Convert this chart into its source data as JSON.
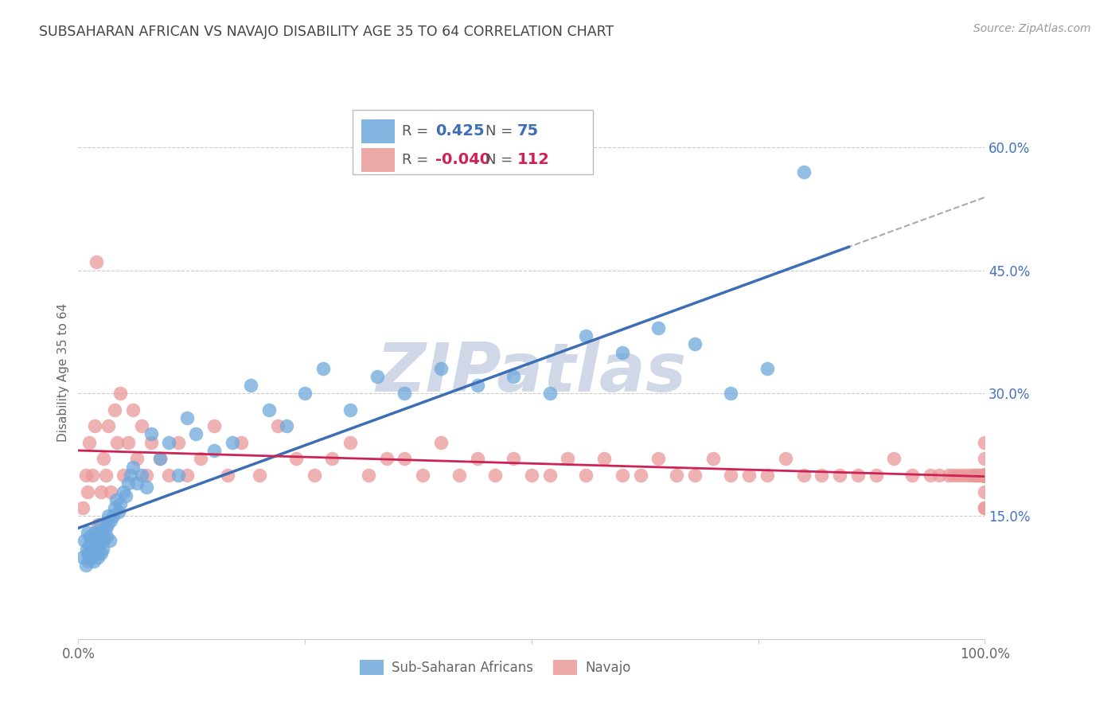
{
  "title": "SUBSAHARAN AFRICAN VS NAVAJO DISABILITY AGE 35 TO 64 CORRELATION CHART",
  "source": "Source: ZipAtlas.com",
  "ylabel": "Disability Age 35 to 64",
  "xlim": [
    0,
    1.0
  ],
  "ylim": [
    0,
    0.65
  ],
  "xticks": [
    0.0,
    0.25,
    0.5,
    0.75,
    1.0
  ],
  "xticklabels": [
    "0.0%",
    "",
    "",
    "",
    "100.0%"
  ],
  "ytick_positions": [
    0.15,
    0.3,
    0.45,
    0.6
  ],
  "yticklabels": [
    "15.0%",
    "30.0%",
    "45.0%",
    "60.0%"
  ],
  "blue_color": "#6fa8dc",
  "pink_color": "#ea9999",
  "blue_line_color": "#3d6eb5",
  "pink_line_color": "#cc2255",
  "dashed_line_color": "#aaaaaa",
  "blue_r": 0.425,
  "blue_n": 75,
  "pink_r": -0.04,
  "pink_n": 112,
  "blue_r_label": "0.425",
  "blue_n_label": "75",
  "pink_r_label": "-0.040",
  "pink_n_label": "112",
  "blue_scatter_x": [
    0.005,
    0.007,
    0.008,
    0.009,
    0.01,
    0.01,
    0.011,
    0.012,
    0.013,
    0.014,
    0.015,
    0.015,
    0.016,
    0.017,
    0.018,
    0.018,
    0.019,
    0.02,
    0.02,
    0.021,
    0.022,
    0.022,
    0.023,
    0.024,
    0.025,
    0.025,
    0.026,
    0.027,
    0.028,
    0.03,
    0.031,
    0.032,
    0.033,
    0.035,
    0.036,
    0.038,
    0.04,
    0.042,
    0.044,
    0.046,
    0.05,
    0.052,
    0.055,
    0.058,
    0.06,
    0.065,
    0.07,
    0.075,
    0.08,
    0.09,
    0.1,
    0.11,
    0.12,
    0.13,
    0.15,
    0.17,
    0.19,
    0.21,
    0.23,
    0.25,
    0.27,
    0.3,
    0.33,
    0.36,
    0.4,
    0.44,
    0.48,
    0.52,
    0.56,
    0.6,
    0.64,
    0.68,
    0.72,
    0.76,
    0.8
  ],
  "blue_scatter_y": [
    0.1,
    0.12,
    0.09,
    0.11,
    0.13,
    0.105,
    0.095,
    0.115,
    0.125,
    0.1,
    0.11,
    0.12,
    0.115,
    0.095,
    0.105,
    0.13,
    0.115,
    0.11,
    0.12,
    0.105,
    0.1,
    0.13,
    0.115,
    0.14,
    0.12,
    0.105,
    0.13,
    0.11,
    0.12,
    0.135,
    0.125,
    0.14,
    0.15,
    0.12,
    0.145,
    0.15,
    0.16,
    0.17,
    0.155,
    0.165,
    0.18,
    0.175,
    0.19,
    0.2,
    0.21,
    0.19,
    0.2,
    0.185,
    0.25,
    0.22,
    0.24,
    0.2,
    0.27,
    0.25,
    0.23,
    0.24,
    0.31,
    0.28,
    0.26,
    0.3,
    0.33,
    0.28,
    0.32,
    0.3,
    0.33,
    0.31,
    0.32,
    0.3,
    0.37,
    0.35,
    0.38,
    0.36,
    0.3,
    0.33,
    0.57
  ],
  "pink_scatter_x": [
    0.005,
    0.008,
    0.01,
    0.012,
    0.015,
    0.018,
    0.02,
    0.022,
    0.025,
    0.028,
    0.03,
    0.033,
    0.036,
    0.04,
    0.043,
    0.046,
    0.05,
    0.055,
    0.06,
    0.065,
    0.07,
    0.075,
    0.08,
    0.09,
    0.1,
    0.11,
    0.12,
    0.135,
    0.15,
    0.165,
    0.18,
    0.2,
    0.22,
    0.24,
    0.26,
    0.28,
    0.3,
    0.32,
    0.34,
    0.36,
    0.38,
    0.4,
    0.42,
    0.44,
    0.46,
    0.48,
    0.5,
    0.52,
    0.54,
    0.56,
    0.58,
    0.6,
    0.62,
    0.64,
    0.66,
    0.68,
    0.7,
    0.72,
    0.74,
    0.76,
    0.78,
    0.8,
    0.82,
    0.84,
    0.86,
    0.88,
    0.9,
    0.92,
    0.94,
    0.95,
    0.96,
    0.965,
    0.97,
    0.975,
    0.98,
    0.985,
    0.988,
    0.99,
    0.992,
    0.994,
    0.996,
    0.997,
    0.998,
    0.999,
    1.0,
    1.0,
    1.0,
    1.0,
    1.0,
    1.0,
    1.0,
    1.0,
    1.0,
    1.0,
    1.0,
    1.0,
    1.0,
    1.0,
    1.0,
    1.0,
    1.0,
    1.0,
    1.0,
    1.0,
    1.0,
    1.0,
    1.0,
    1.0,
    1.0,
    1.0,
    1.0,
    1.0,
    1.0,
    1.0,
    1.0,
    1.0,
    1.0,
    1.0
  ],
  "pink_scatter_y": [
    0.16,
    0.2,
    0.18,
    0.24,
    0.2,
    0.26,
    0.46,
    0.14,
    0.18,
    0.22,
    0.2,
    0.26,
    0.18,
    0.28,
    0.24,
    0.3,
    0.2,
    0.24,
    0.28,
    0.22,
    0.26,
    0.2,
    0.24,
    0.22,
    0.2,
    0.24,
    0.2,
    0.22,
    0.26,
    0.2,
    0.24,
    0.2,
    0.26,
    0.22,
    0.2,
    0.22,
    0.24,
    0.2,
    0.22,
    0.22,
    0.2,
    0.24,
    0.2,
    0.22,
    0.2,
    0.22,
    0.2,
    0.2,
    0.22,
    0.2,
    0.22,
    0.2,
    0.2,
    0.22,
    0.2,
    0.2,
    0.22,
    0.2,
    0.2,
    0.2,
    0.22,
    0.2,
    0.2,
    0.2,
    0.2,
    0.2,
    0.22,
    0.2,
    0.2,
    0.2,
    0.2,
    0.2,
    0.2,
    0.2,
    0.2,
    0.2,
    0.2,
    0.2,
    0.2,
    0.2,
    0.2,
    0.2,
    0.2,
    0.2,
    0.16,
    0.2,
    0.24,
    0.18,
    0.2,
    0.16,
    0.22,
    0.2,
    0.2,
    0.2,
    0.2,
    0.2,
    0.2,
    0.2,
    0.2,
    0.2,
    0.2,
    0.2,
    0.2,
    0.2,
    0.2,
    0.2,
    0.2,
    0.2,
    0.2,
    0.2,
    0.2,
    0.2,
    0.2,
    0.2,
    0.2,
    0.2,
    0.2,
    0.2
  ],
  "watermark_text": "ZIPatlas",
  "watermark_color": "#d0d8e8",
  "background_color": "#ffffff",
  "grid_color": "#cccccc",
  "title_color": "#444444",
  "source_color": "#999999",
  "label_color": "#666666",
  "ytick_color": "#4472c4"
}
